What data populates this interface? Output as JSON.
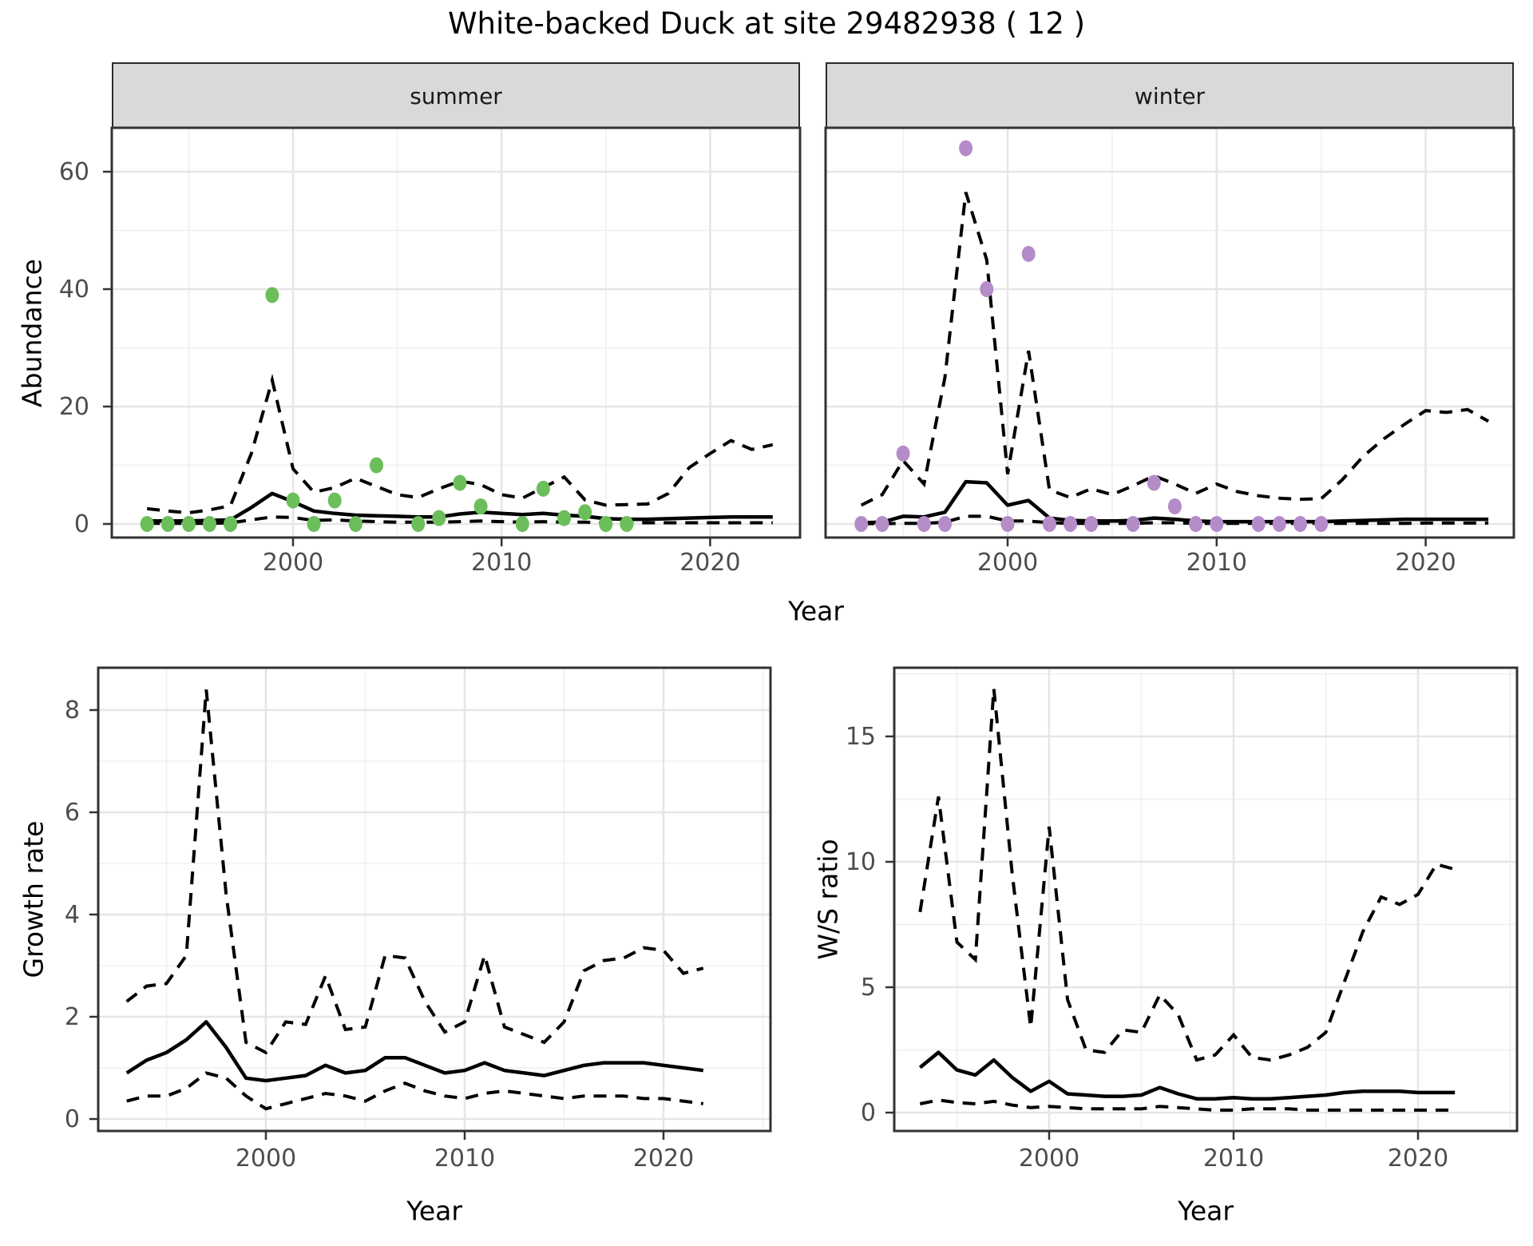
{
  "title": "White-backed Duck at site 29482938 ( 12 )",
  "colors": {
    "summer_point": "#6BBE5A",
    "winter_point": "#B48CC8",
    "series_line": "#000000",
    "strip_bg": "#D9D9D9",
    "grid_major": "#E6E6E6",
    "grid_minor": "#F0F0F0",
    "panel_border": "#333333",
    "tick_text": "#4D4D4D"
  },
  "chart_data": [
    {
      "id": "abundance",
      "type": "line+scatter",
      "ylabel": "Abundance",
      "xlabel": "Year",
      "yticks": [
        0,
        20,
        40,
        60
      ],
      "xticks": [
        2000,
        2010,
        2020
      ],
      "xlim": [
        1991.3,
        2024.3
      ],
      "ylim": [
        -2.3,
        67.1
      ],
      "grid": true,
      "line_years": [
        1993,
        1994,
        1995,
        1996,
        1997,
        1998,
        1999,
        2000,
        2001,
        2002,
        2003,
        2004,
        2005,
        2006,
        2007,
        2008,
        2009,
        2010,
        2011,
        2012,
        2013,
        2014,
        2015,
        2016,
        2017,
        2018,
        2019,
        2020,
        2021,
        2022,
        2023
      ],
      "facets": [
        {
          "label": "summer",
          "point_color": "#6BBE5A",
          "points": {
            "x": [
              1993,
              1994,
              1995,
              1996,
              1997,
              1999,
              2000,
              2001,
              2002,
              2003,
              2004,
              2006,
              2007,
              2008,
              2009,
              2011,
              2012,
              2013,
              2014,
              2015,
              2016
            ],
            "y": [
              0,
              0,
              0,
              0,
              0,
              39,
              4,
              0,
              4,
              0,
              10,
              0,
              1,
              7,
              3,
              0,
              6,
              1,
              2,
              0,
              0
            ]
          },
          "median": [
            0.5,
            0.5,
            0.5,
            0.6,
            0.7,
            2.8,
            5.2,
            3.8,
            2.2,
            1.8,
            1.5,
            1.4,
            1.3,
            1.2,
            1.2,
            1.7,
            2.0,
            1.8,
            1.6,
            1.8,
            1.5,
            1.3,
            0.9,
            0.8,
            0.8,
            0.9,
            1.0,
            1.1,
            1.2,
            1.2,
            1.2
          ],
          "upper": [
            2.6,
            2.2,
            1.9,
            2.4,
            3.1,
            12.0,
            24.5,
            9.4,
            5.4,
            6.2,
            7.8,
            6.4,
            5.0,
            4.5,
            6.0,
            7.3,
            6.7,
            5.0,
            4.4,
            6.2,
            8.0,
            4.1,
            3.2,
            3.3,
            3.4,
            5.2,
            9.6,
            12.0,
            14.2,
            12.7,
            13.5
          ],
          "lower": [
            0.1,
            0.1,
            0.1,
            0.1,
            0.2,
            0.7,
            1.2,
            1.1,
            0.6,
            0.7,
            0.5,
            0.4,
            0.3,
            0.3,
            0.3,
            0.4,
            0.5,
            0.4,
            0.3,
            0.4,
            0.3,
            0.3,
            0.2,
            0.2,
            0.2,
            0.2,
            0.2,
            0.2,
            0.2,
            0.2,
            0.2
          ]
        },
        {
          "label": "winter",
          "point_color": "#B48CC8",
          "points": {
            "x": [
              1993,
              1994,
              1995,
              1996,
              1997,
              1998,
              1999,
              2000,
              2001,
              2002,
              2003,
              2004,
              2006,
              2007,
              2008,
              2009,
              2010,
              2012,
              2013,
              2014,
              2015
            ],
            "y": [
              0,
              0,
              12,
              0,
              0,
              64,
              40,
              0,
              46,
              0,
              0,
              0,
              0,
              7,
              3,
              0,
              0,
              0,
              0,
              0,
              0
            ]
          },
          "median": [
            0.2,
            0.3,
            1.3,
            1.2,
            2.0,
            7.2,
            7.0,
            3.2,
            4.0,
            1.0,
            0.6,
            0.5,
            0.5,
            0.6,
            1.0,
            0.8,
            0.5,
            0.4,
            0.4,
            0.4,
            0.4,
            0.4,
            0.4,
            0.5,
            0.6,
            0.7,
            0.8,
            0.8,
            0.8,
            0.8,
            0.8
          ],
          "upper": [
            3.2,
            5.0,
            10.8,
            6.8,
            25.0,
            56.5,
            45.0,
            8.5,
            29.5,
            5.8,
            4.5,
            6.0,
            5.0,
            6.5,
            8.2,
            6.8,
            5.2,
            6.8,
            5.5,
            4.8,
            4.4,
            4.2,
            4.3,
            7.5,
            11.5,
            14.5,
            17.0,
            19.3,
            19.0,
            19.5,
            17.5
          ],
          "lower": [
            0.05,
            0.05,
            0.1,
            0.1,
            0.3,
            1.3,
            1.3,
            0.5,
            0.5,
            0.2,
            0.1,
            0.1,
            0.1,
            0.1,
            0.2,
            0.2,
            0.1,
            0.1,
            0.1,
            0.1,
            0.1,
            0.1,
            0.1,
            0.1,
            0.1,
            0.1,
            0.1,
            0.15,
            0.15,
            0.15,
            0.15
          ]
        }
      ]
    },
    {
      "id": "growth_rate",
      "type": "line",
      "ylabel": "Growth rate",
      "xlabel": "Year",
      "yticks": [
        0,
        2,
        4,
        6,
        8
      ],
      "xticks": [
        2000,
        2010,
        2020
      ],
      "xlim": [
        1991.6,
        2025.4
      ],
      "ylim": [
        -0.23,
        8.83
      ],
      "grid": true,
      "line_years": [
        1993,
        1994,
        1995,
        1996,
        1997,
        1998,
        1999,
        2000,
        2001,
        2002,
        2003,
        2004,
        2005,
        2006,
        2007,
        2008,
        2009,
        2010,
        2011,
        2012,
        2013,
        2014,
        2015,
        2016,
        2017,
        2018,
        2019,
        2020,
        2021,
        2022
      ],
      "median": [
        0.9,
        1.15,
        1.3,
        1.55,
        1.9,
        1.4,
        0.8,
        0.75,
        0.8,
        0.85,
        1.05,
        0.9,
        0.95,
        1.2,
        1.2,
        1.05,
        0.9,
        0.95,
        1.1,
        0.95,
        0.9,
        0.85,
        0.95,
        1.05,
        1.1,
        1.1,
        1.1,
        1.05,
        1.0,
        0.95
      ],
      "upper": [
        2.3,
        2.6,
        2.65,
        3.2,
        8.4,
        4.4,
        1.5,
        1.3,
        1.9,
        1.85,
        2.8,
        1.75,
        1.8,
        3.2,
        3.15,
        2.3,
        1.7,
        1.9,
        3.2,
        1.8,
        1.65,
        1.5,
        1.9,
        2.9,
        3.1,
        3.15,
        3.35,
        3.3,
        2.85,
        2.95
      ],
      "lower": [
        0.35,
        0.45,
        0.45,
        0.6,
        0.9,
        0.8,
        0.45,
        0.2,
        0.3,
        0.4,
        0.5,
        0.45,
        0.35,
        0.55,
        0.7,
        0.55,
        0.45,
        0.4,
        0.5,
        0.55,
        0.5,
        0.45,
        0.4,
        0.45,
        0.45,
        0.45,
        0.4,
        0.4,
        0.35,
        0.3
      ]
    },
    {
      "id": "ws_ratio",
      "type": "line",
      "ylabel": "W/S ratio",
      "xlabel": "Year",
      "yticks": [
        0,
        5,
        10,
        15
      ],
      "xticks": [
        2000,
        2010,
        2020
      ],
      "xlim": [
        1991.6,
        2025.4
      ],
      "ylim": [
        -0.74,
        17.74
      ],
      "grid": true,
      "line_years": [
        1993,
        1994,
        1995,
        1996,
        1997,
        1998,
        1999,
        2000,
        2001,
        2002,
        2003,
        2004,
        2005,
        2006,
        2007,
        2008,
        2009,
        2010,
        2011,
        2012,
        2013,
        2014,
        2015,
        2016,
        2017,
        2018,
        2019,
        2020,
        2021,
        2022
      ],
      "median": [
        1.8,
        2.4,
        1.7,
        1.5,
        2.1,
        1.4,
        0.85,
        1.25,
        0.75,
        0.7,
        0.65,
        0.65,
        0.7,
        1.0,
        0.75,
        0.55,
        0.55,
        0.6,
        0.55,
        0.55,
        0.6,
        0.65,
        0.7,
        0.8,
        0.85,
        0.85,
        0.85,
        0.8,
        0.8,
        0.8
      ],
      "upper": [
        8.0,
        12.6,
        6.8,
        6.1,
        16.9,
        9.5,
        3.4,
        11.4,
        4.5,
        2.5,
        2.4,
        3.3,
        3.2,
        4.7,
        3.9,
        2.1,
        2.3,
        3.1,
        2.2,
        2.1,
        2.3,
        2.6,
        3.2,
        5.2,
        7.2,
        8.6,
        8.3,
        8.7,
        9.9,
        9.7
      ],
      "lower": [
        0.35,
        0.5,
        0.4,
        0.35,
        0.45,
        0.3,
        0.2,
        0.25,
        0.2,
        0.15,
        0.15,
        0.15,
        0.15,
        0.25,
        0.2,
        0.15,
        0.1,
        0.1,
        0.15,
        0.15,
        0.15,
        0.1,
        0.1,
        0.1,
        0.1,
        0.1,
        0.1,
        0.1,
        0.1,
        0.1
      ]
    }
  ]
}
